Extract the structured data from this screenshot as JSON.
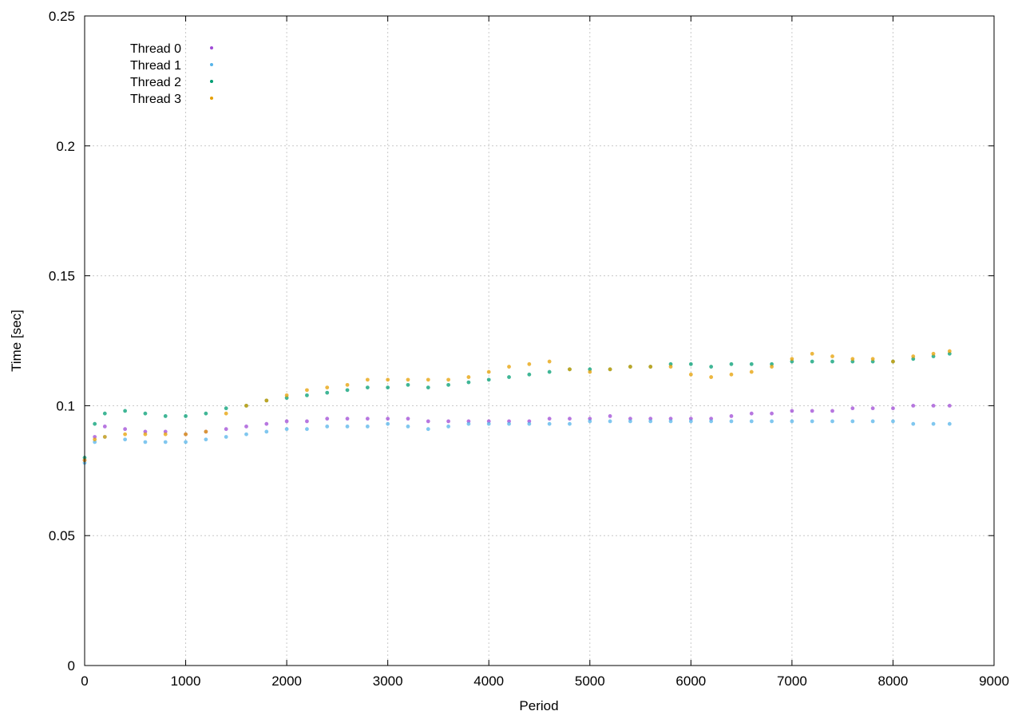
{
  "chart_data": {
    "type": "scatter",
    "title": "",
    "xlabel": "Period",
    "ylabel": "Time [sec]",
    "xlim": [
      0,
      9000
    ],
    "ylim": [
      0,
      0.25
    ],
    "x_ticks": [
      "0",
      "1000",
      "2000",
      "3000",
      "4000",
      "5000",
      "6000",
      "7000",
      "8000",
      "9000"
    ],
    "y_ticks": [
      "0",
      "0.05",
      "0.1",
      "0.15",
      "0.2",
      "0.25"
    ],
    "grid": true,
    "legend_position": "top-left",
    "series": [
      {
        "name": "Thread 0",
        "color": "#9f4ad6",
        "x": [
          0,
          100,
          200,
          400,
          600,
          800,
          1000,
          1200,
          1400,
          1600,
          1800,
          2000,
          2200,
          2400,
          2600,
          2800,
          3000,
          3200,
          3400,
          3600,
          3800,
          4000,
          4200,
          4400,
          4600,
          4800,
          5000,
          5200,
          5400,
          5600,
          5800,
          6000,
          6200,
          6400,
          6600,
          6800,
          7000,
          7200,
          7400,
          7600,
          7800,
          8000,
          8200,
          8400,
          8560
        ],
        "y": [
          0.079,
          0.088,
          0.092,
          0.091,
          0.09,
          0.09,
          0.089,
          0.09,
          0.091,
          0.092,
          0.093,
          0.094,
          0.094,
          0.095,
          0.095,
          0.095,
          0.095,
          0.095,
          0.094,
          0.094,
          0.094,
          0.094,
          0.094,
          0.094,
          0.095,
          0.095,
          0.095,
          0.096,
          0.095,
          0.095,
          0.095,
          0.095,
          0.095,
          0.096,
          0.097,
          0.097,
          0.098,
          0.098,
          0.098,
          0.099,
          0.099,
          0.099,
          0.1,
          0.1,
          0.1
        ]
      },
      {
        "name": "Thread 1",
        "color": "#56b4e9",
        "x": [
          0,
          100,
          200,
          400,
          600,
          800,
          1000,
          1200,
          1400,
          1600,
          1800,
          2000,
          2200,
          2400,
          2600,
          2800,
          3000,
          3200,
          3400,
          3600,
          3800,
          4000,
          4200,
          4400,
          4600,
          4800,
          5000,
          5200,
          5400,
          5600,
          5800,
          6000,
          6200,
          6400,
          6600,
          6800,
          7000,
          7200,
          7400,
          7600,
          7800,
          8000,
          8200,
          8400,
          8560
        ],
        "y": [
          0.078,
          0.086,
          0.088,
          0.087,
          0.086,
          0.086,
          0.086,
          0.087,
          0.088,
          0.089,
          0.09,
          0.091,
          0.091,
          0.092,
          0.092,
          0.092,
          0.093,
          0.092,
          0.091,
          0.092,
          0.093,
          0.093,
          0.093,
          0.093,
          0.093,
          0.093,
          0.094,
          0.094,
          0.094,
          0.094,
          0.094,
          0.094,
          0.094,
          0.094,
          0.094,
          0.094,
          0.094,
          0.094,
          0.094,
          0.094,
          0.094,
          0.094,
          0.093,
          0.093,
          0.093
        ]
      },
      {
        "name": "Thread 2",
        "color": "#009e73",
        "x": [
          0,
          100,
          200,
          400,
          600,
          800,
          1000,
          1200,
          1400,
          1600,
          1800,
          2000,
          2200,
          2400,
          2600,
          2800,
          3000,
          3200,
          3400,
          3600,
          3800,
          4000,
          4200,
          4400,
          4600,
          4800,
          5000,
          5200,
          5400,
          5600,
          5800,
          6000,
          6200,
          6400,
          6600,
          6800,
          7000,
          7200,
          7400,
          7600,
          7800,
          8000,
          8200,
          8400,
          8560
        ],
        "y": [
          0.08,
          0.093,
          0.097,
          0.098,
          0.097,
          0.096,
          0.096,
          0.097,
          0.099,
          0.1,
          0.102,
          0.103,
          0.104,
          0.105,
          0.106,
          0.107,
          0.107,
          0.108,
          0.107,
          0.108,
          0.109,
          0.11,
          0.111,
          0.112,
          0.113,
          0.114,
          0.114,
          0.114,
          0.115,
          0.115,
          0.116,
          0.116,
          0.115,
          0.116,
          0.116,
          0.116,
          0.117,
          0.117,
          0.117,
          0.117,
          0.117,
          0.117,
          0.118,
          0.119,
          0.12
        ]
      },
      {
        "name": "Thread 3",
        "color": "#e69f00",
        "x": [
          0,
          100,
          200,
          400,
          600,
          800,
          1000,
          1200,
          1400,
          1600,
          1800,
          2000,
          2200,
          2400,
          2600,
          2800,
          3000,
          3200,
          3400,
          3600,
          3800,
          4000,
          4200,
          4400,
          4600,
          4800,
          5000,
          5200,
          5400,
          5600,
          5800,
          6000,
          6200,
          6400,
          6600,
          6800,
          7000,
          7200,
          7400,
          7600,
          7800,
          8000,
          8200,
          8400,
          8560
        ],
        "y": [
          0.079,
          0.087,
          0.088,
          0.089,
          0.089,
          0.089,
          0.089,
          0.09,
          0.097,
          0.1,
          0.102,
          0.104,
          0.106,
          0.107,
          0.108,
          0.11,
          0.11,
          0.11,
          0.11,
          0.11,
          0.111,
          0.113,
          0.115,
          0.116,
          0.117,
          0.114,
          0.113,
          0.114,
          0.115,
          0.115,
          0.115,
          0.112,
          0.111,
          0.112,
          0.113,
          0.115,
          0.118,
          0.12,
          0.119,
          0.118,
          0.118,
          0.117,
          0.119,
          0.12,
          0.121
        ]
      }
    ]
  }
}
